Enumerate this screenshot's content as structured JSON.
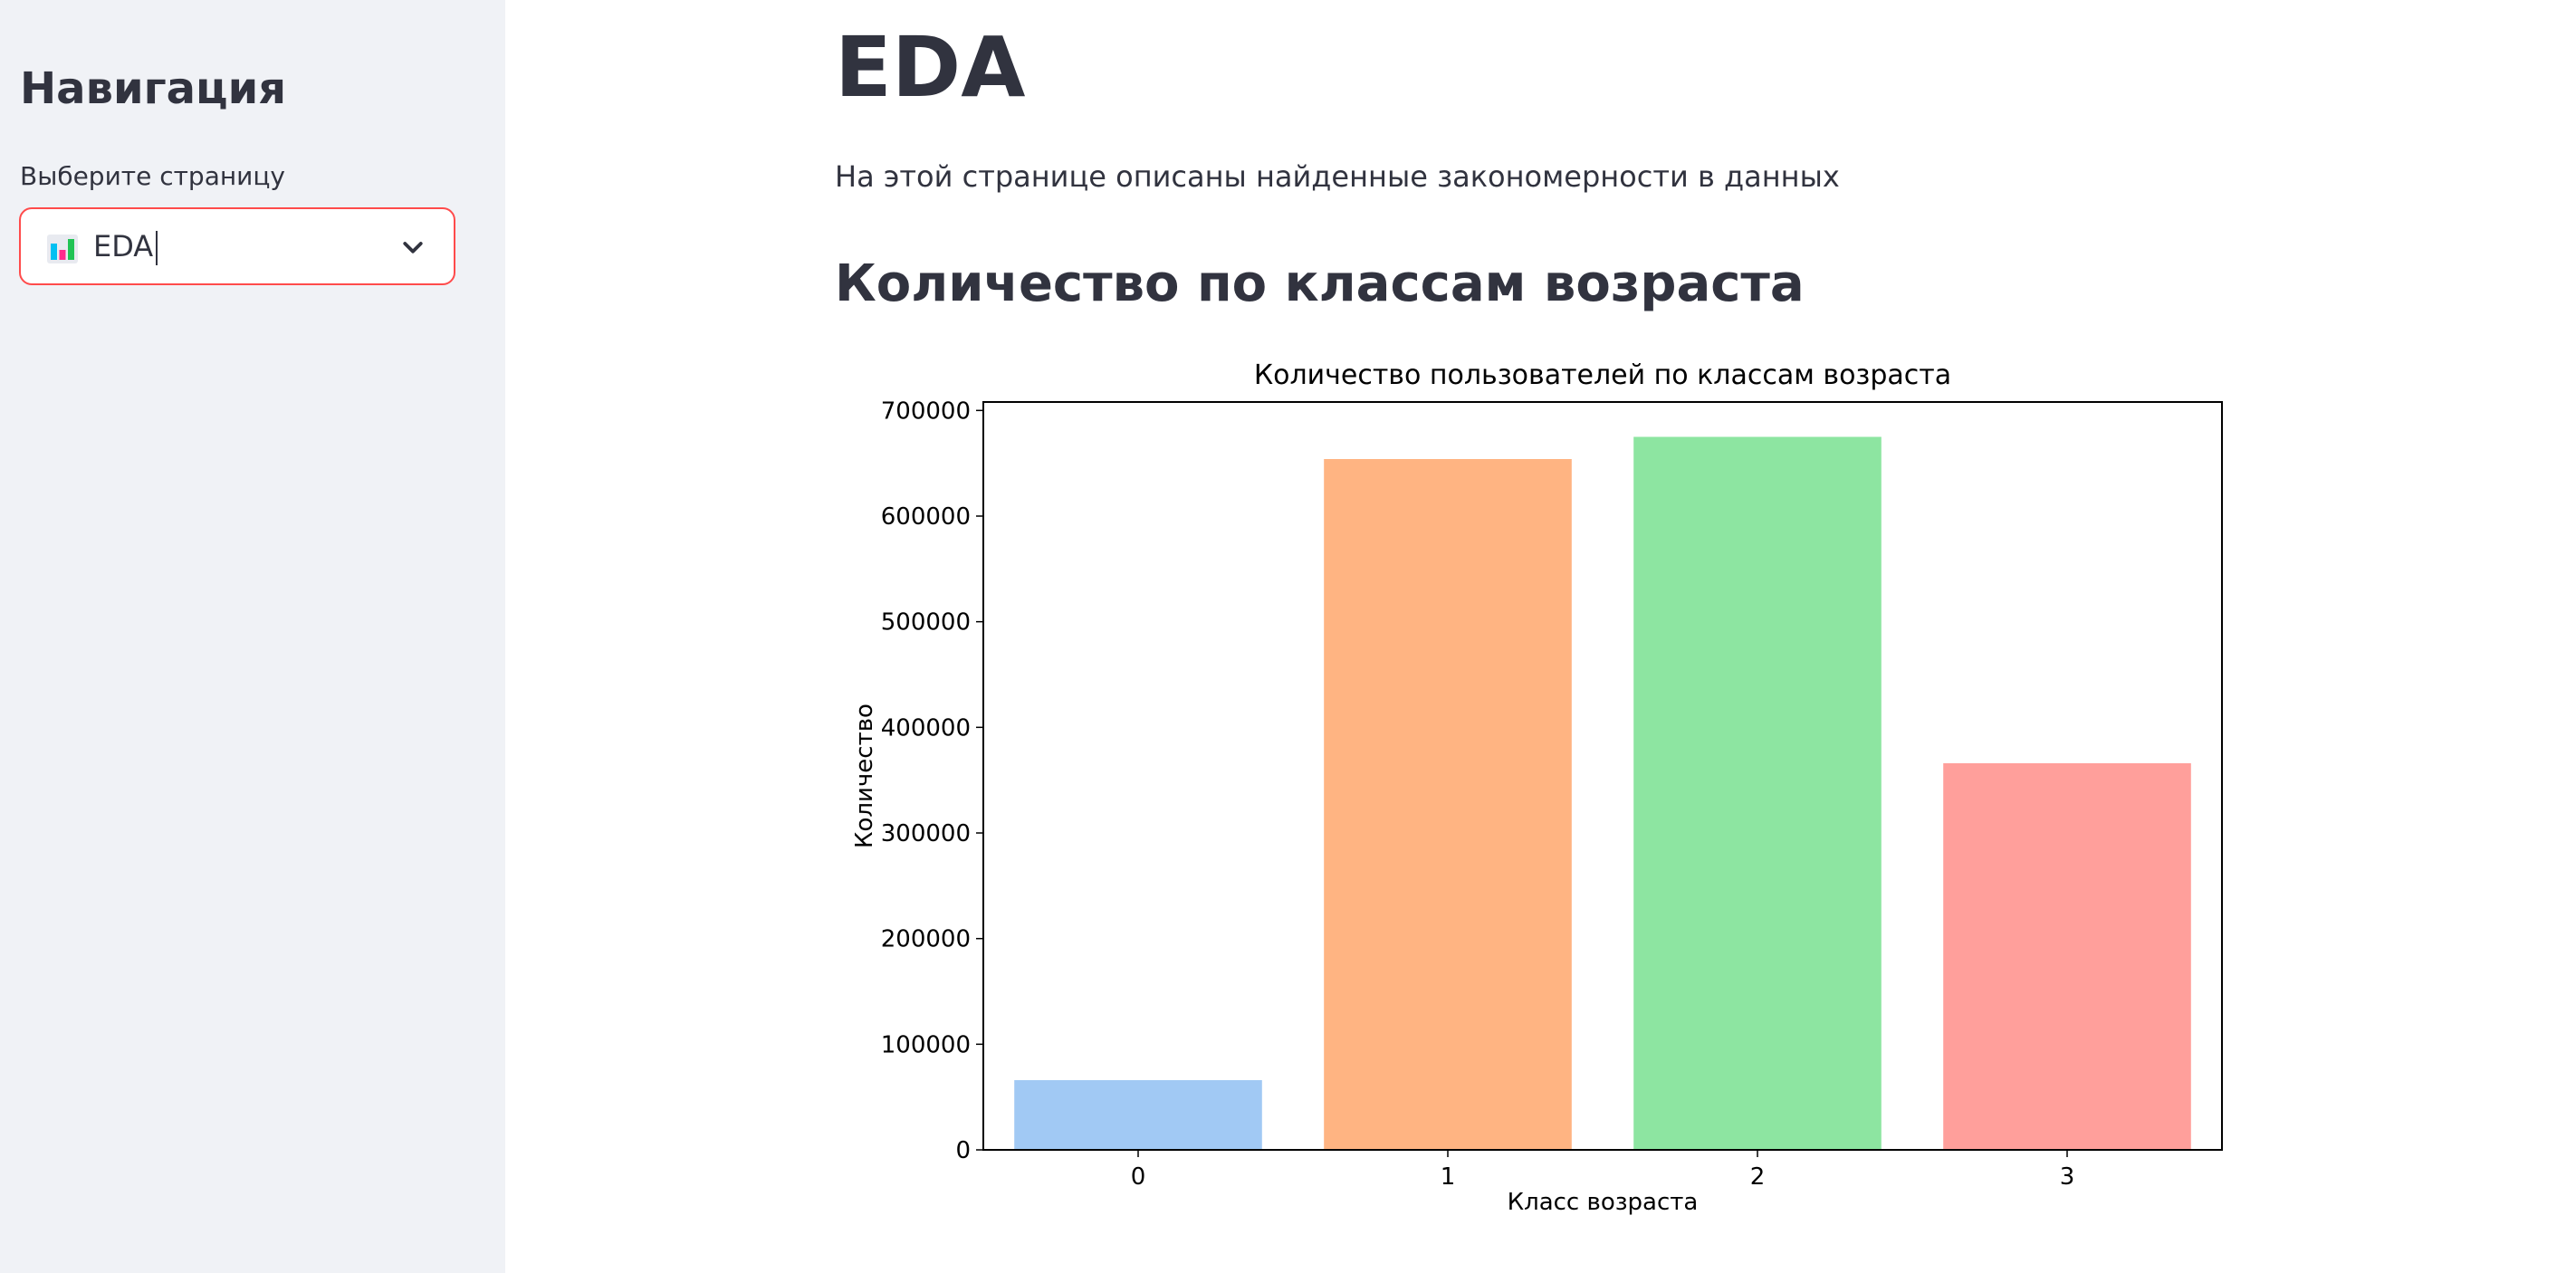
{
  "sidebar": {
    "title": "Навигация",
    "select_label": "Выберите страницу",
    "selected_page": "EDA",
    "selected_icon": "bar-chart-icon",
    "accent_color": "#ff4b4b"
  },
  "main": {
    "title": "EDA",
    "description": "На этой странице описаны найденные закономерности в данных",
    "section_title": "Количество по классам возраста"
  },
  "chart_data": {
    "type": "bar",
    "title": "Количество пользователей по классам возраста",
    "xlabel": "Класс возраста",
    "ylabel": "Количество",
    "categories": [
      "0",
      "1",
      "2",
      "3"
    ],
    "values": [
      66000,
      654000,
      675000,
      366000
    ],
    "colors": [
      "#a1c9f4",
      "#ffb482",
      "#8de5a1",
      "#ff9f9b"
    ],
    "ylim": [
      0,
      708000
    ],
    "yticks": [
      0,
      100000,
      200000,
      300000,
      400000,
      500000,
      600000,
      700000
    ],
    "grid": false
  }
}
